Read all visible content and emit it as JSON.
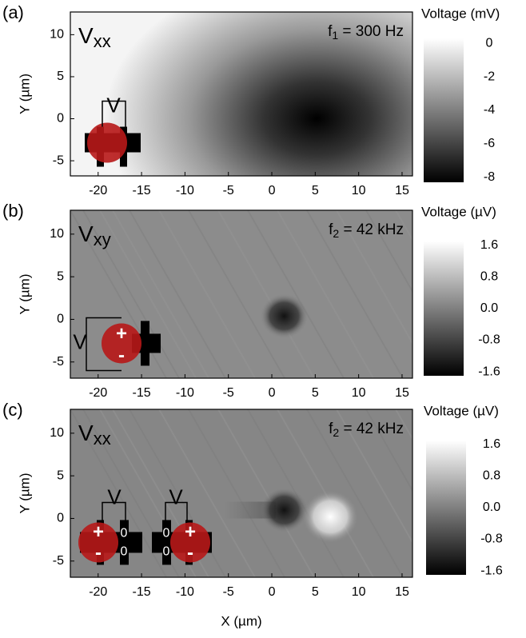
{
  "chart_data": [
    {
      "type": "heatmap",
      "panel": "(a)",
      "label": "V",
      "label_sub": "xx",
      "annotation": "f",
      "annotation_sub": "1",
      "annotation_rest": " = 300 Hz",
      "xlim": [
        -23.2,
        16.2
      ],
      "ylim": [
        -6.8,
        12.7
      ],
      "xticks": [
        -20,
        -15,
        -10,
        -5,
        0,
        5,
        10,
        15
      ],
      "yticks": [
        -5,
        0,
        5,
        10
      ],
      "ylabel": "Y (µm)",
      "colorbar": {
        "title": "Voltage (mV)",
        "lim": [
          -8.3,
          0.3
        ],
        "ticks": [
          0,
          -2,
          -4,
          -6,
          -8
        ],
        "colors": [
          "#000000",
          "#ffffff"
        ]
      },
      "sketch_texts": [
        "V"
      ]
    },
    {
      "type": "heatmap",
      "panel": "(b)",
      "label": "V",
      "label_sub": "xy",
      "annotation": "f",
      "annotation_sub": "2",
      "annotation_rest": " = 42 kHz",
      "xlim": [
        -23.2,
        16.2
      ],
      "ylim": [
        -6.9,
        12.8
      ],
      "xticks": [
        -20,
        -15,
        -10,
        -5,
        0,
        5,
        10,
        15
      ],
      "yticks": [
        -5,
        0,
        5,
        10
      ],
      "ylabel": "Y (µm)",
      "colorbar": {
        "title": "Voltage (µV)",
        "lim": [
          -1.7,
          1.7
        ],
        "ticks": [
          1.6,
          0.8,
          {
            "value": 0,
            "label": "0.0"
          },
          -0.8,
          -1.6
        ],
        "colors": [
          "#000000",
          "#ffffff"
        ]
      },
      "sketch_texts": [
        "V",
        "+",
        "-"
      ]
    },
    {
      "type": "heatmap",
      "panel": "(c)",
      "label": "V",
      "label_sub": "xx",
      "annotation": "f",
      "annotation_sub": "2",
      "annotation_rest": " = 42 kHz",
      "xlim": [
        -23.2,
        16.2
      ],
      "ylim": [
        -6.9,
        12.8
      ],
      "xticks": [
        -20,
        -15,
        -10,
        -5,
        0,
        5,
        10,
        15
      ],
      "yticks": [
        -5,
        0,
        5,
        10
      ],
      "ylabel": "Y (µm)",
      "xlabel": "X (µm)",
      "colorbar": {
        "title": "Voltage (µV)",
        "lim": [
          -1.7,
          1.7
        ],
        "ticks": [
          1.6,
          0.8,
          {
            "value": 0,
            "label": "0.0"
          },
          -0.8,
          -1.6
        ],
        "colors": [
          "#000000",
          "#ffffff"
        ]
      },
      "sketch_texts": [
        "V",
        "+",
        "-",
        "0",
        "0",
        "V",
        "+",
        "-",
        "0",
        "0"
      ]
    }
  ]
}
